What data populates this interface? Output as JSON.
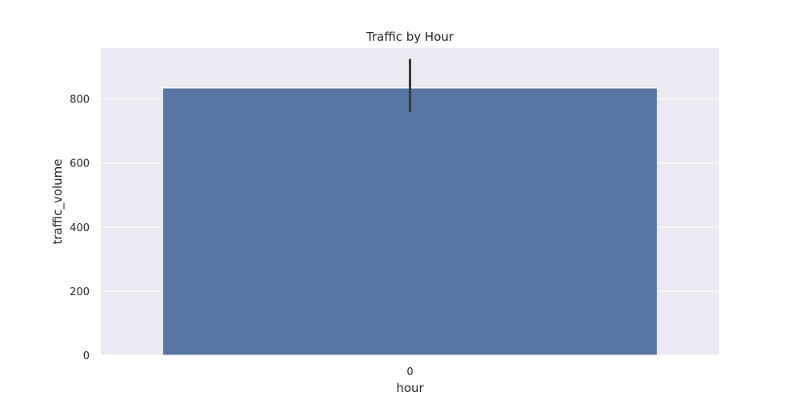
{
  "chart_data": {
    "type": "bar",
    "title": "Traffic by Hour",
    "xlabel": "hour",
    "ylabel": "traffic_volume",
    "categories": [
      "0"
    ],
    "values": [
      834
    ],
    "error_bars": [
      {
        "low": 759,
        "high": 925
      }
    ],
    "ylim": [
      0,
      959
    ],
    "yticks": [
      0,
      200,
      400,
      600,
      800
    ],
    "grid": true,
    "legend": false,
    "colors": {
      "bar": "#5975a4",
      "background": "#eaeaf2",
      "grid": "#ffffff",
      "error_bar": "#3b3b3b",
      "text": "#262626"
    }
  }
}
